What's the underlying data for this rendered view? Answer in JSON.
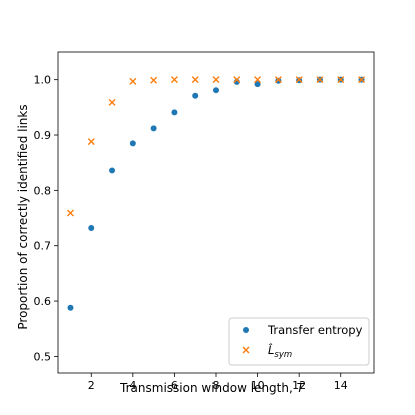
{
  "chart_data": {
    "type": "scatter",
    "xlabel": "Transmission window length, ",
    "xlabel_var": "T",
    "ylabel": "Proportion of correctly identified links",
    "xlim": [
      0.4,
      15.6
    ],
    "ylim": [
      0.47,
      1.05
    ],
    "xticks": [
      "2",
      "4",
      "6",
      "8",
      "10",
      "12",
      "14"
    ],
    "yticks": [
      "0.5",
      "0.6",
      "0.7",
      "0.8",
      "0.9",
      "1.0"
    ],
    "grid": false,
    "legend_position": "bottom-right",
    "series": [
      {
        "name": "Transfer entropy",
        "marker": "circle",
        "color": "#1f77b4",
        "x": [
          1,
          2,
          3,
          4,
          5,
          6,
          7,
          8,
          9,
          10,
          11,
          12,
          13,
          14,
          15
        ],
        "y": [
          0.588,
          0.732,
          0.836,
          0.885,
          0.912,
          0.941,
          0.971,
          0.981,
          0.996,
          0.992,
          0.998,
          0.999,
          1.0,
          1.0,
          1.0
        ]
      },
      {
        "name": "L̂",
        "name_subscript": "sym",
        "marker": "x",
        "color": "#ff7f0e",
        "x": [
          1,
          2,
          3,
          4,
          5,
          6,
          7,
          8,
          9,
          10,
          11,
          12,
          13,
          14,
          15
        ],
        "y": [
          0.759,
          0.888,
          0.959,
          0.997,
          0.999,
          1.0,
          1.0,
          1.0,
          1.0,
          1.0,
          1.0,
          1.0,
          1.0,
          1.0,
          1.0
        ]
      }
    ]
  }
}
